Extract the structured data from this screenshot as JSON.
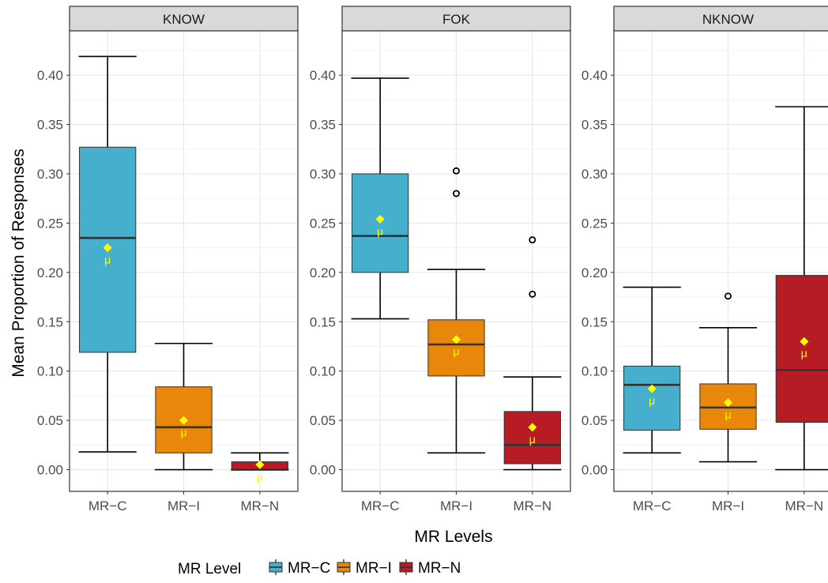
{
  "chart_data": {
    "type": "boxplot",
    "facets": [
      "KNOW",
      "FOK",
      "NKNOW"
    ],
    "categories": [
      "MR−C",
      "MR−I",
      "MR−N"
    ],
    "xlabel": "MR Levels",
    "ylabel": "Mean Proportion of Responses",
    "ylim": [
      -0.022,
      0.445
    ],
    "yticks": [
      0.0,
      0.05,
      0.1,
      0.15,
      0.2,
      0.25,
      0.3,
      0.35,
      0.4
    ],
    "ytick_labels": [
      "0.00",
      "0.05",
      "0.10",
      "0.15",
      "0.20",
      "0.25",
      "0.30",
      "0.35",
      "0.40"
    ],
    "mean_marker_label": "μ",
    "grid": true,
    "legend": {
      "title": "MR Level",
      "placement": "bottom",
      "entries": [
        {
          "name": "MR−C",
          "color": "#46AFCD"
        },
        {
          "name": "MR−I",
          "color": "#E8870A"
        },
        {
          "name": "MR−N",
          "color": "#B71C25"
        }
      ]
    },
    "panels": [
      {
        "facet": "KNOW",
        "boxes": [
          {
            "category": "MR−C",
            "min": 0.018,
            "q1": 0.119,
            "median": 0.235,
            "q3": 0.327,
            "max": 0.419,
            "mean": 0.225,
            "outliers": []
          },
          {
            "category": "MR−I",
            "min": 0.0,
            "q1": 0.017,
            "median": 0.043,
            "q3": 0.084,
            "max": 0.128,
            "mean": 0.05,
            "outliers": []
          },
          {
            "category": "MR−N",
            "min": 0.0,
            "q1": 0.0,
            "median": 0.0,
            "q3": 0.008,
            "max": 0.017,
            "mean": 0.005,
            "outliers": []
          }
        ]
      },
      {
        "facet": "FOK",
        "boxes": [
          {
            "category": "MR−C",
            "min": 0.153,
            "q1": 0.2,
            "median": 0.237,
            "q3": 0.3,
            "max": 0.397,
            "mean": 0.254,
            "outliers": []
          },
          {
            "category": "MR−I",
            "min": 0.017,
            "q1": 0.095,
            "median": 0.127,
            "q3": 0.152,
            "max": 0.203,
            "mean": 0.132,
            "outliers": [
              0.28,
              0.303
            ]
          },
          {
            "category": "MR−N",
            "min": 0.0,
            "q1": 0.006,
            "median": 0.025,
            "q3": 0.059,
            "max": 0.094,
            "mean": 0.043,
            "outliers": [
              0.178,
              0.233
            ]
          }
        ]
      },
      {
        "facet": "NKNOW",
        "boxes": [
          {
            "category": "MR−C",
            "min": 0.017,
            "q1": 0.04,
            "median": 0.086,
            "q3": 0.105,
            "max": 0.185,
            "mean": 0.082,
            "outliers": []
          },
          {
            "category": "MR−I",
            "min": 0.008,
            "q1": 0.041,
            "median": 0.063,
            "q3": 0.087,
            "max": 0.144,
            "mean": 0.068,
            "outliers": [
              0.176
            ]
          },
          {
            "category": "MR−N",
            "min": 0.0,
            "q1": 0.048,
            "median": 0.101,
            "q3": 0.197,
            "max": 0.368,
            "mean": 0.13,
            "outliers": []
          }
        ]
      }
    ]
  }
}
